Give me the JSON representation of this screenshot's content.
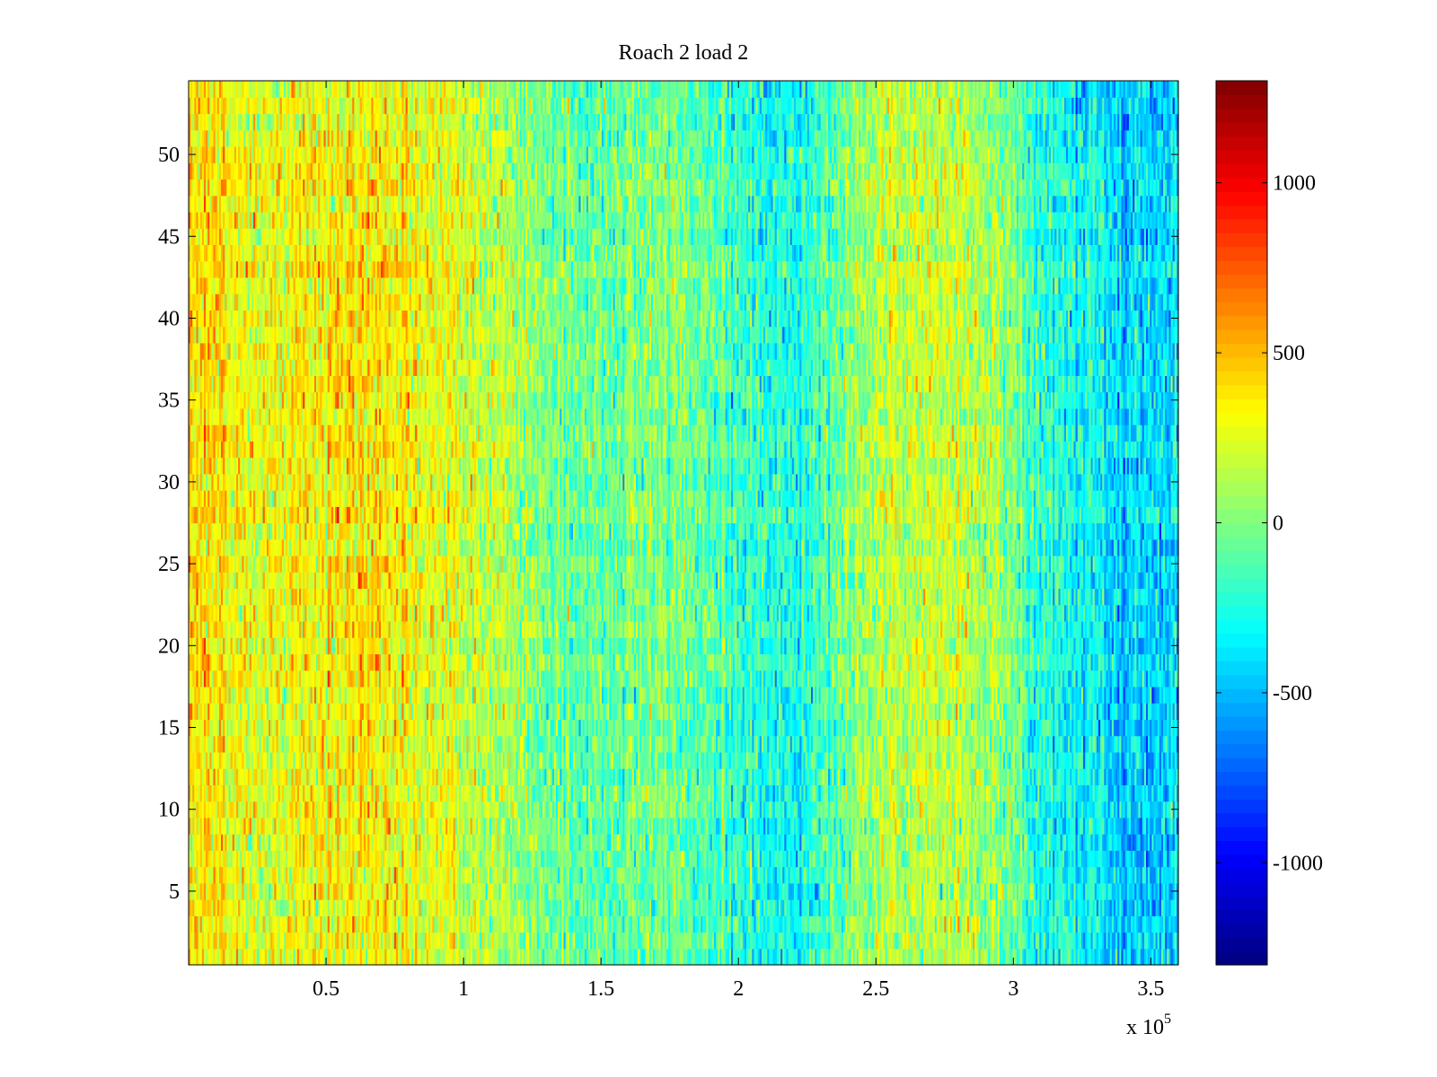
{
  "chart_data": {
    "type": "heatmap",
    "title": "Roach 2 load 2",
    "xlabel": "",
    "ylabel": "",
    "x_multiplier_label": {
      "prefix": "x 10",
      "exponent": "5"
    },
    "xlim": [
      0,
      360000
    ],
    "ylim": [
      0.5,
      54.5
    ],
    "x_ticks": [
      {
        "value": 50000,
        "label": "0.5"
      },
      {
        "value": 100000,
        "label": "1"
      },
      {
        "value": 150000,
        "label": "1.5"
      },
      {
        "value": 200000,
        "label": "2"
      },
      {
        "value": 250000,
        "label": "2.5"
      },
      {
        "value": 300000,
        "label": "3"
      },
      {
        "value": 350000,
        "label": "3.5"
      }
    ],
    "y_ticks": [
      {
        "value": 5,
        "label": "5"
      },
      {
        "value": 10,
        "label": "10"
      },
      {
        "value": 15,
        "label": "15"
      },
      {
        "value": 20,
        "label": "20"
      },
      {
        "value": 25,
        "label": "25"
      },
      {
        "value": 30,
        "label": "30"
      },
      {
        "value": 35,
        "label": "35"
      },
      {
        "value": 40,
        "label": "40"
      },
      {
        "value": 45,
        "label": "45"
      },
      {
        "value": 50,
        "label": "50"
      }
    ],
    "n_rows": 54,
    "colormap": "jet",
    "clim": [
      -1300,
      1300
    ],
    "colorbar": {
      "ticks": [
        {
          "value": 1000,
          "label": "1000"
        },
        {
          "value": 500,
          "label": "500"
        },
        {
          "value": 0,
          "label": "0"
        },
        {
          "value": -500,
          "label": "-500"
        },
        {
          "value": -1000,
          "label": "-1000"
        }
      ]
    },
    "column_means": {
      "x": [
        0,
        10000,
        20000,
        30000,
        40000,
        50000,
        60000,
        70000,
        80000,
        90000,
        100000,
        110000,
        120000,
        130000,
        140000,
        150000,
        160000,
        170000,
        180000,
        190000,
        200000,
        210000,
        220000,
        230000,
        240000,
        250000,
        260000,
        270000,
        280000,
        290000,
        300000,
        310000,
        320000,
        330000,
        340000,
        350000,
        360000
      ],
      "values": [
        450,
        380,
        300,
        260,
        330,
        320,
        360,
        380,
        320,
        270,
        210,
        160,
        100,
        0,
        -60,
        -70,
        -50,
        -10,
        -20,
        -80,
        -170,
        -260,
        -250,
        -150,
        20,
        160,
        150,
        200,
        210,
        110,
        -60,
        -200,
        -280,
        -330,
        -420,
        -430,
        -350
      ]
    },
    "row_means": {
      "rows": [
        1,
        6,
        12,
        18,
        24,
        30,
        36,
        42,
        48,
        54
      ],
      "values": [
        0,
        -40,
        -20,
        -10,
        10,
        10,
        0,
        20,
        0,
        -40
      ]
    },
    "noise_std": 150
  }
}
